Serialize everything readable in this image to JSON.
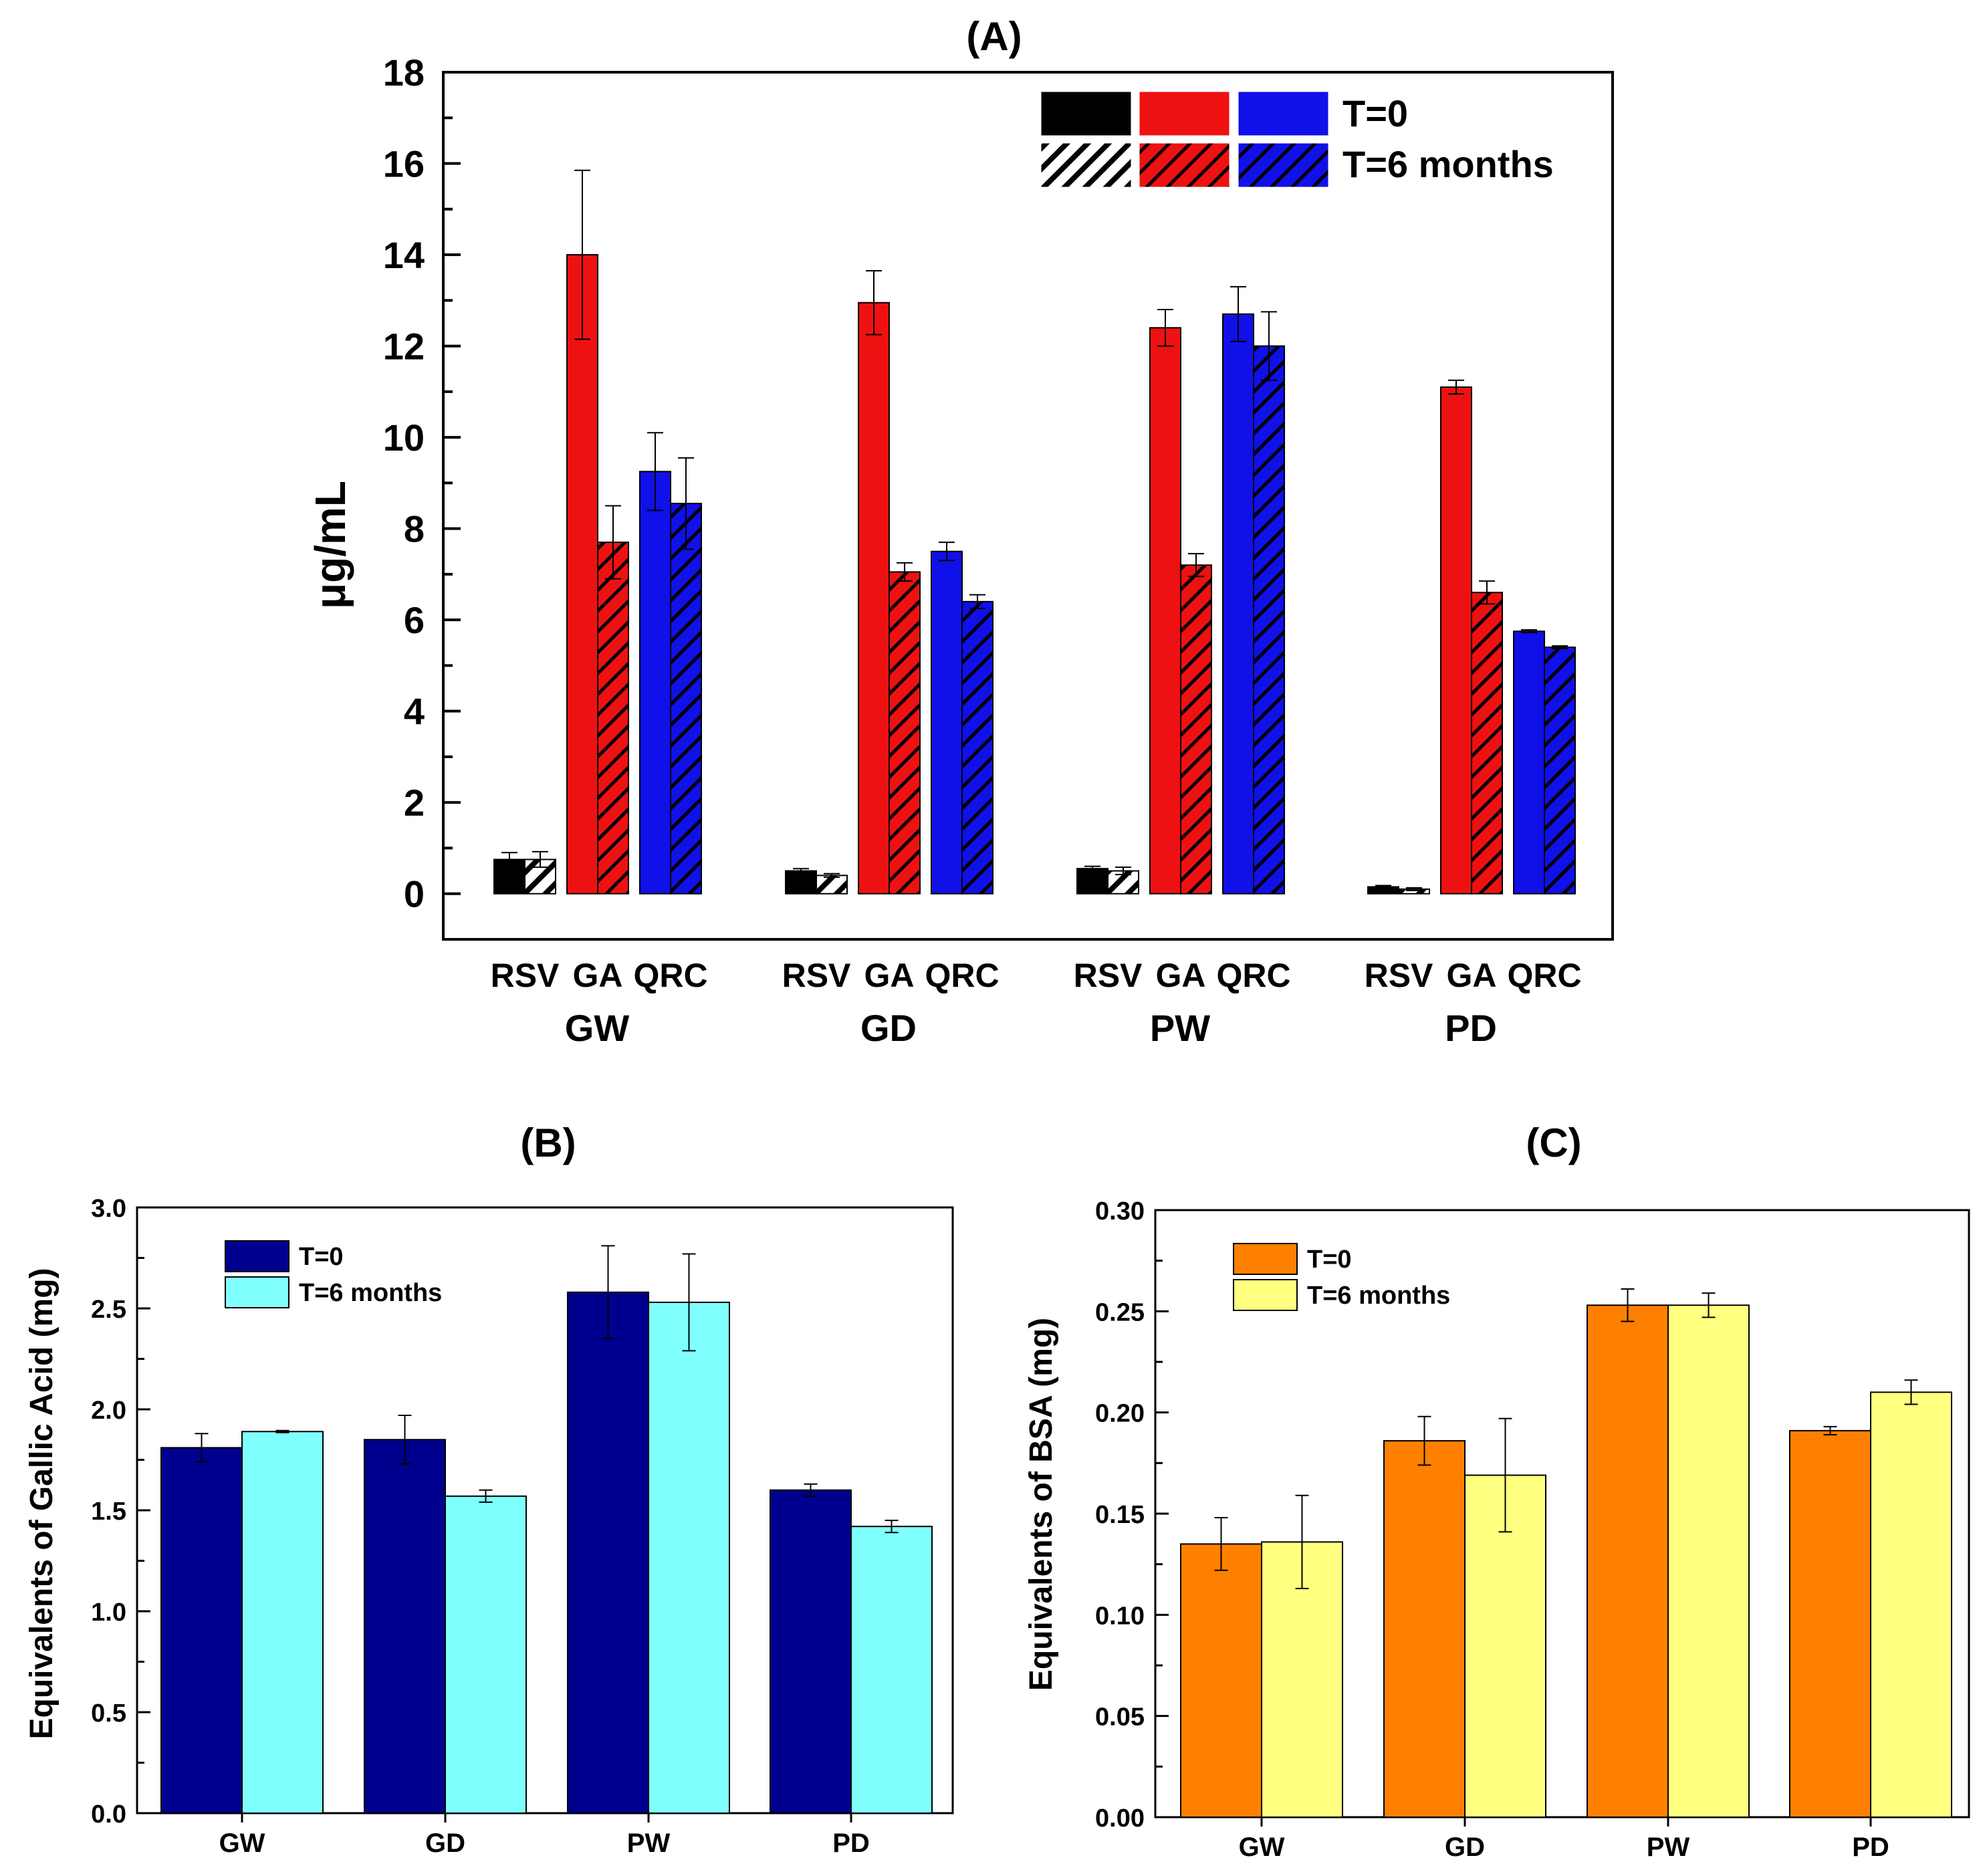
{
  "colors": {
    "black": "#000000",
    "red": "#ee1111",
    "blue": "#1010e8",
    "navy": "#00008e",
    "cyan": "#80ffff",
    "orange": "#ff8000",
    "yellow": "#ffff80"
  },
  "chart_data": [
    {
      "panel": "A",
      "type": "bar",
      "title": "(A)",
      "ylabel": "μg/mL",
      "xlabel": "",
      "ylim": [
        -1,
        18
      ],
      "yticks": [
        "0",
        "2",
        "4",
        "6",
        "8",
        "10",
        "12",
        "14",
        "16",
        "18"
      ],
      "groups": [
        "GW",
        "GD",
        "PW",
        "PD"
      ],
      "subcategories": [
        "RSV",
        "GA",
        "QRC"
      ],
      "legend": {
        "position": "top-right",
        "entries": [
          "T=0",
          "T=6 months"
        ]
      },
      "series": [
        {
          "name": "T=0",
          "pattern": "solid",
          "values": {
            "RSV": [
              0.75,
              0.5,
              0.55,
              0.15
            ],
            "GA": [
              14.0,
              12.95,
              12.4,
              11.1
            ],
            "QRC": [
              9.25,
              7.5,
              12.7,
              5.75
            ]
          },
          "errors": {
            "RSV": [
              0.15,
              0.05,
              0.05,
              0.03
            ],
            "GA": [
              1.85,
              0.7,
              0.4,
              0.15
            ],
            "QRC": [
              0.85,
              0.2,
              0.6,
              0.03
            ]
          }
        },
        {
          "name": "T=6 months",
          "pattern": "hatched",
          "values": {
            "RSV": [
              0.75,
              0.4,
              0.5,
              0.1
            ],
            "GA": [
              7.7,
              7.05,
              7.2,
              6.6
            ],
            "QRC": [
              8.55,
              6.4,
              12.0,
              5.4
            ]
          },
          "errors": {
            "RSV": [
              0.17,
              0.04,
              0.08,
              0.03
            ],
            "GA": [
              0.8,
              0.2,
              0.25,
              0.25
            ],
            "QRC": [
              1.0,
              0.15,
              0.75,
              0.03
            ]
          }
        }
      ]
    },
    {
      "panel": "B",
      "type": "bar",
      "title": "(B)",
      "ylabel": "Equivalents of Gallic Acid (mg)",
      "xlabel": "",
      "ylim": [
        0,
        3.0
      ],
      "yticks": [
        "0.0",
        "0.5",
        "1.0",
        "1.5",
        "2.0",
        "2.5",
        "3.0"
      ],
      "categories": [
        "GW",
        "GD",
        "PW",
        "PD"
      ],
      "legend": {
        "position": "top-left",
        "entries": [
          "T=0",
          "T=6 months"
        ]
      },
      "series": [
        {
          "name": "T=0",
          "values": [
            1.81,
            1.85,
            2.58,
            1.6
          ],
          "errors": [
            0.07,
            0.12,
            0.23,
            0.03
          ]
        },
        {
          "name": "T=6 months",
          "values": [
            1.89,
            1.57,
            2.53,
            1.42
          ],
          "errors": [
            0.005,
            0.03,
            0.24,
            0.03
          ]
        }
      ]
    },
    {
      "panel": "C",
      "type": "bar",
      "title": "(C)",
      "ylabel": "Equivalents of BSA (mg)",
      "xlabel": "",
      "ylim": [
        0,
        0.3
      ],
      "yticks": [
        "0.00",
        "0.05",
        "0.10",
        "0.15",
        "0.20",
        "0.25",
        "0.30"
      ],
      "categories": [
        "GW",
        "GD",
        "PW",
        "PD"
      ],
      "legend": {
        "position": "top-left",
        "entries": [
          "T=0",
          "T=6 months"
        ]
      },
      "series": [
        {
          "name": "T=0",
          "values": [
            0.135,
            0.186,
            0.253,
            0.191
          ],
          "errors": [
            0.013,
            0.012,
            0.008,
            0.002
          ]
        },
        {
          "name": "T=6 months",
          "values": [
            0.136,
            0.169,
            0.253,
            0.21
          ],
          "errors": [
            0.023,
            0.028,
            0.006,
            0.006
          ]
        }
      ]
    }
  ]
}
